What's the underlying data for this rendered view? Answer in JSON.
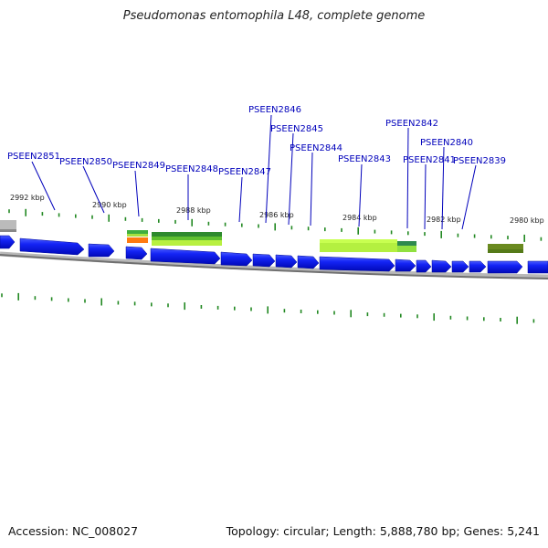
{
  "title": "Pseudomonas entomophila L48, complete genome",
  "accession_label": "Accession: NC_008027",
  "summary_label": "Topology: circular; Length: 5,888,780 bp; Genes: 5,241",
  "colors": {
    "gene_label": "#0000bb",
    "gene_fill": "#0a14f0",
    "gene_highlight": "#3c4cff",
    "tick": "#228822",
    "backbone": "#888888"
  },
  "scale_labels": [
    "2992 kbp",
    "2990 kbp",
    "2988 kbp",
    "2986 kbp",
    "2984 kbp",
    "2982 kbp",
    "2980 kbp"
  ],
  "genes": [
    {
      "label": "PSEEN2851"
    },
    {
      "label": "PSEEN2850"
    },
    {
      "label": "PSEEN2849"
    },
    {
      "label": "PSEEN2848"
    },
    {
      "label": "PSEEN2847"
    },
    {
      "label": "PSEEN2846"
    },
    {
      "label": "PSEEN2845"
    },
    {
      "label": "PSEEN2844"
    },
    {
      "label": "PSEEN2843"
    },
    {
      "label": "PSEEN2842"
    },
    {
      "label": "PSEEN2841"
    },
    {
      "label": "PSEEN2840"
    },
    {
      "label": "PSEEN2839"
    }
  ]
}
